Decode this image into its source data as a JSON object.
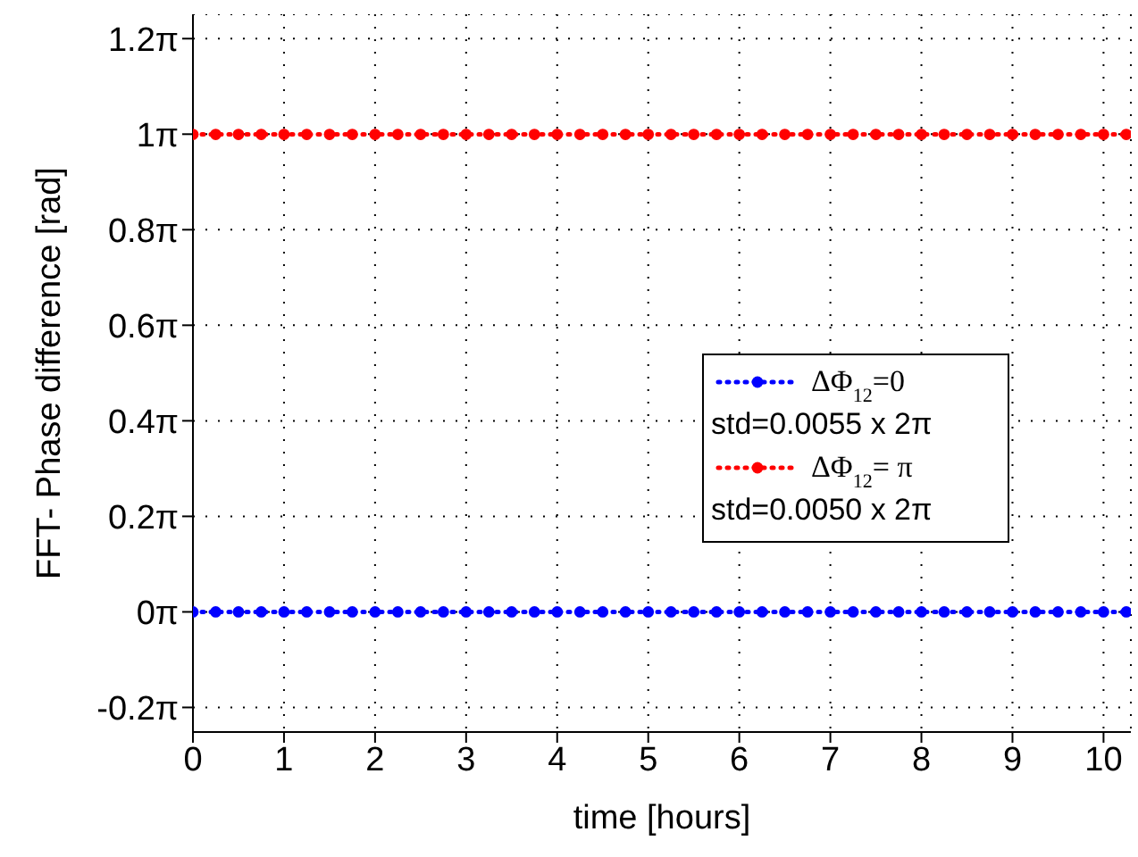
{
  "chart_data": {
    "type": "line",
    "xlabel": "time [hours]",
    "ylabel": "FFT- Phase difference [rad]",
    "x": [
      0,
      0.25,
      0.5,
      0.75,
      1,
      1.25,
      1.5,
      1.75,
      2,
      2.25,
      2.5,
      2.75,
      3,
      3.25,
      3.5,
      3.75,
      4,
      4.25,
      4.5,
      4.75,
      5,
      5.25,
      5.5,
      5.75,
      6,
      6.25,
      6.5,
      6.75,
      7,
      7.25,
      7.5,
      7.75,
      8,
      8.25,
      8.5,
      8.75,
      9,
      9.25,
      9.5,
      9.75,
      10,
      10.25
    ],
    "series": [
      {
        "name": "ΔΦ$_{12}$=0\nstd=0.0055 x 2π",
        "color": "#0000ff",
        "values": [
          0,
          0,
          0,
          0,
          0,
          0,
          0,
          0,
          0,
          0,
          0,
          0,
          0,
          0,
          0,
          0,
          0,
          0,
          0,
          0,
          0,
          0,
          0,
          0,
          0,
          0,
          0,
          0,
          0,
          0,
          0,
          0,
          0,
          0,
          0,
          0,
          0,
          0,
          0,
          0,
          0,
          0
        ]
      },
      {
        "name": "ΔΦ$_{12}$= π\nstd=0.0050 x 2π",
        "color": "#ff0000",
        "values": [
          3.14,
          3.14,
          3.14,
          3.14,
          3.14,
          3.14,
          3.14,
          3.14,
          3.14,
          3.14,
          3.14,
          3.14,
          3.14,
          3.14,
          3.14,
          3.14,
          3.14,
          3.14,
          3.14,
          3.14,
          3.14,
          3.14,
          3.14,
          3.14,
          3.14,
          3.14,
          3.14,
          3.14,
          3.14,
          3.14,
          3.14,
          3.14,
          3.14,
          3.14,
          3.14,
          3.14,
          3.14,
          3.14,
          3.14,
          3.14,
          3.14,
          3.14
        ]
      }
    ],
    "xlim": [
      0,
      10.3
    ],
    "xticks": [
      0,
      1,
      2,
      3,
      4,
      5,
      6,
      7,
      8,
      9,
      10
    ],
    "ylim": [
      -0.79,
      3.93
    ],
    "yticks": [
      {
        "value": -0.6283,
        "label": "-0.2π"
      },
      {
        "value": 0,
        "label": "0π"
      },
      {
        "value": 0.6283,
        "label": "0.2π"
      },
      {
        "value": 1.2566,
        "label": "0.4π"
      },
      {
        "value": 1.885,
        "label": "0.6π"
      },
      {
        "value": 2.5133,
        "label": "0.8π"
      },
      {
        "value": 3.1416,
        "label": "1π"
      },
      {
        "value": 3.7699,
        "label": "1.2π"
      }
    ],
    "grid": true,
    "legend": "right",
    "marker": "circle",
    "line_style": "dotted"
  }
}
